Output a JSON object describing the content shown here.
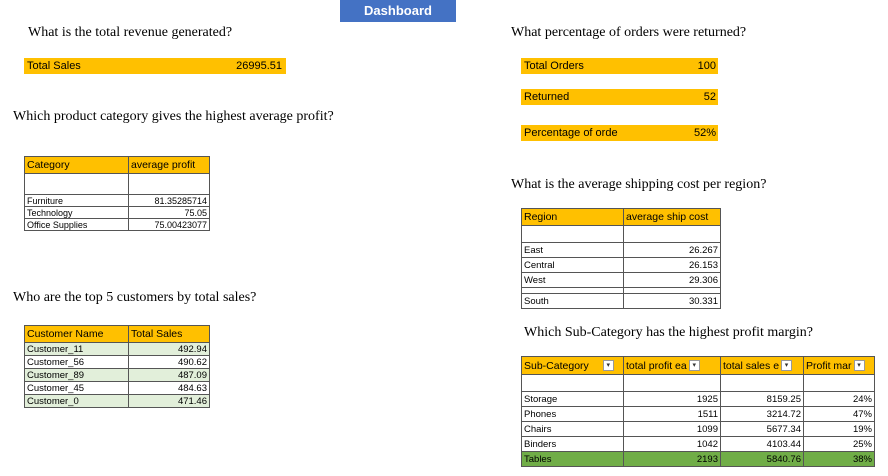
{
  "banner": "Dashboard",
  "q1": {
    "question": "What is the total revenue generated?",
    "label": "Total Sales",
    "value": "26995.51"
  },
  "q2": {
    "question": "Which product category gives the highest average profit?",
    "headers": [
      "Category",
      "average profit"
    ],
    "rows": [
      [
        "Furniture",
        "81.35285714"
      ],
      [
        "Technology",
        "75.05"
      ],
      [
        "Office Supplies",
        "75.00423077"
      ]
    ]
  },
  "q3": {
    "question": "Who are the top 5 customers by total sales?",
    "headers": [
      "Customer Name",
      "Total Sales"
    ],
    "rows": [
      [
        "Customer_11",
        "492.94"
      ],
      [
        "Customer_56",
        "490.62"
      ],
      [
        "Customer_89",
        "487.09"
      ],
      [
        "Customer_45",
        "484.63"
      ],
      [
        "Customer_0",
        "471.46"
      ]
    ]
  },
  "q4": {
    "question": "What percentage of orders were returned?",
    "total_label": "Total Orders",
    "total_value": "100",
    "returned_label": "Returned",
    "returned_value": "52",
    "pct_label": "Percentage of orde",
    "pct_value": "52%"
  },
  "q5": {
    "question": "What is the average shipping cost per region?",
    "headers": [
      "Region",
      "average ship cost"
    ],
    "rows": [
      [
        "East",
        "26.267"
      ],
      [
        "Central",
        "26.153"
      ],
      [
        "West",
        "29.306"
      ],
      [
        "South",
        "30.331"
      ]
    ]
  },
  "q6": {
    "question": "Which Sub-Category has the highest profit margin?",
    "headers": [
      "Sub-Category",
      "total profit ea",
      "total sales e",
      "Profit mar"
    ],
    "rows": [
      [
        "Storage",
        "1925",
        "8159.25",
        "24%"
      ],
      [
        "Phones",
        "1511",
        "3214.72",
        "47%"
      ],
      [
        "Chairs",
        "1099",
        "5677.34",
        "19%"
      ],
      [
        "Binders",
        "1042",
        "4103.44",
        "25%"
      ],
      [
        "Tables",
        "2193",
        "5840.76",
        "38%"
      ]
    ]
  },
  "colors": {
    "banner": "#4472c4",
    "highlight": "#ffc000",
    "green": "#70ad47",
    "green_light": "#e2efda"
  }
}
